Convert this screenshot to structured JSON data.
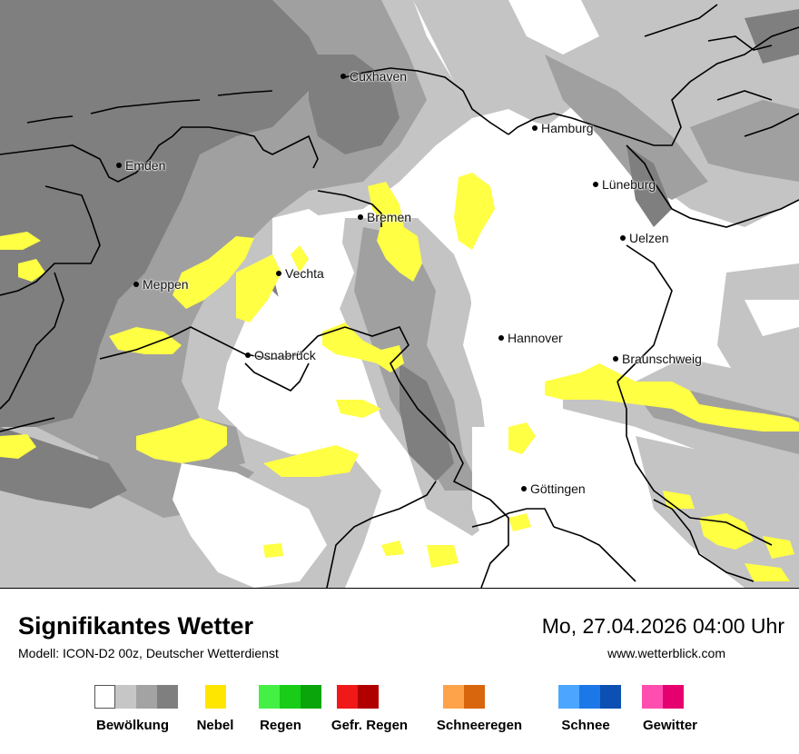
{
  "map": {
    "cities": [
      {
        "name": "Cuxhaven"
      },
      {
        "name": "Hamburg"
      },
      {
        "name": "Emden"
      },
      {
        "name": "Lüneburg"
      },
      {
        "name": "Bremen"
      },
      {
        "name": "Uelzen"
      },
      {
        "name": "Vechta"
      },
      {
        "name": "Meppen"
      },
      {
        "name": "Hannover"
      },
      {
        "name": "Osnabrück"
      },
      {
        "name": "Braunschweig"
      },
      {
        "name": "Göttingen"
      }
    ],
    "colors": {
      "cloud_levels": [
        "#ffffff",
        "#c4c4c4",
        "#a0a0a0",
        "#7f7f7f"
      ],
      "fog": "#ffff44",
      "border": "#000000"
    }
  },
  "footer": {
    "title": "Signifikantes Wetter",
    "model": "Modell: ICON-D2 00z, Deutscher Wetterdienst",
    "datetime": "Mo, 27.04.2026 04:00 Uhr",
    "website": "www.wetterblick.com"
  },
  "legend": [
    {
      "label": "Bewölkung",
      "colors": [
        "#ffffff",
        "#c6c6c6",
        "#a3a3a3",
        "#7f7f7f"
      ]
    },
    {
      "label": "Nebel",
      "colors": [
        "#ffe600"
      ]
    },
    {
      "label": "Regen",
      "colors": [
        "#45f045",
        "#18cc18",
        "#0aa50a"
      ]
    },
    {
      "label": "Gefr. Regen",
      "colors": [
        "#f01818",
        "#b00000"
      ]
    },
    {
      "label": "Schneeregen",
      "colors": [
        "#ffa34a",
        "#d8660c"
      ]
    },
    {
      "label": "Schnee",
      "colors": [
        "#4ca6ff",
        "#1c78e6",
        "#0c50b4"
      ]
    },
    {
      "label": "Gewitter",
      "colors": [
        "#ff4eb0",
        "#e6006f"
      ]
    }
  ]
}
